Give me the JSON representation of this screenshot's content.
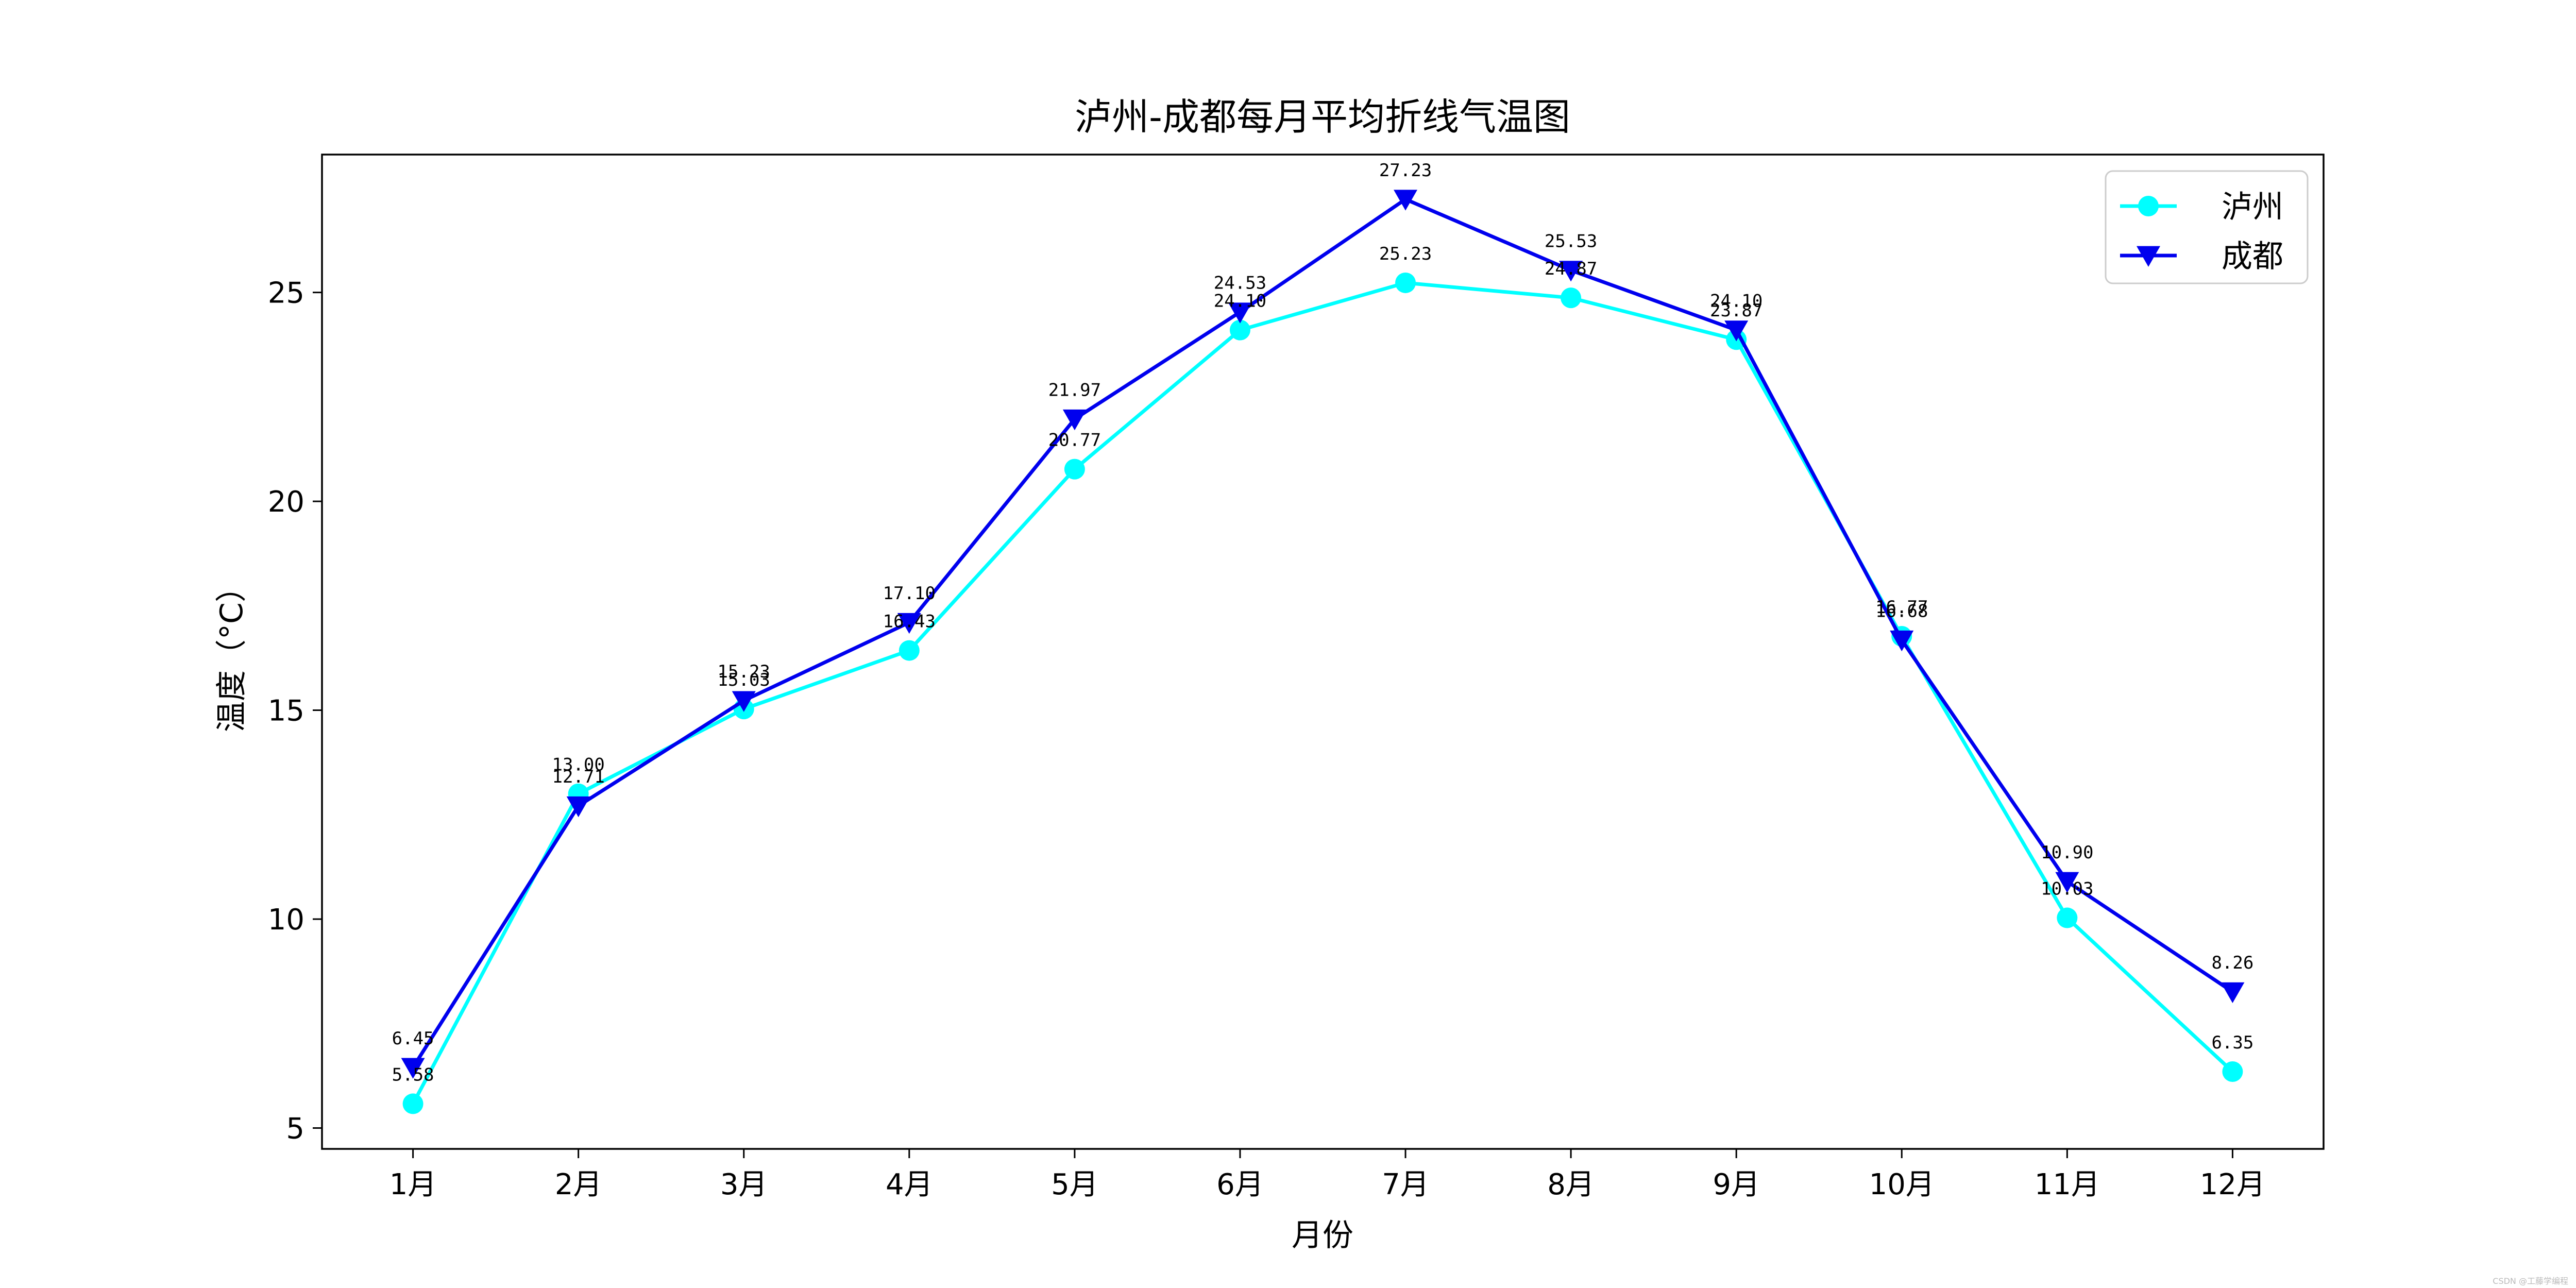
{
  "chart_data": {
    "type": "line",
    "title": "泸州-成都每月平均折线气温图",
    "xlabel": "月份",
    "ylabel": "温度（°C）",
    "categories": [
      "1月",
      "2月",
      "3月",
      "4月",
      "5月",
      "6月",
      "7月",
      "8月",
      "9月",
      "10月",
      "11月",
      "12月"
    ],
    "ylim": [
      4.5,
      28.3
    ],
    "yticks": [
      5,
      10,
      15,
      20,
      25
    ],
    "grid": false,
    "legend_position": "top-right",
    "series": [
      {
        "name": "泸州",
        "color": "#00FFFF",
        "marker": "circle",
        "values": [
          5.58,
          13.0,
          15.03,
          16.43,
          20.77,
          24.1,
          25.23,
          24.87,
          23.87,
          16.77,
          10.03,
          6.35
        ],
        "labels": [
          "5.58",
          "13.00",
          "15.03",
          "16.43",
          "20.77",
          "24.10",
          "25.23",
          "24.87",
          "23.87",
          "16.77",
          "10.03",
          "6.35"
        ]
      },
      {
        "name": "成都",
        "color": "#0000EE",
        "marker": "triangle-down",
        "values": [
          6.45,
          12.71,
          15.23,
          17.1,
          21.97,
          24.53,
          27.23,
          25.53,
          24.1,
          16.68,
          10.9,
          8.26
        ],
        "labels": [
          "6.45",
          "12.71",
          "15.23",
          "17.10",
          "21.97",
          "24.53",
          "27.23",
          "25.53",
          "24.10",
          "16.68",
          "10.90",
          "8.26"
        ]
      }
    ]
  },
  "watermark": "CSDN @工藤学编程"
}
